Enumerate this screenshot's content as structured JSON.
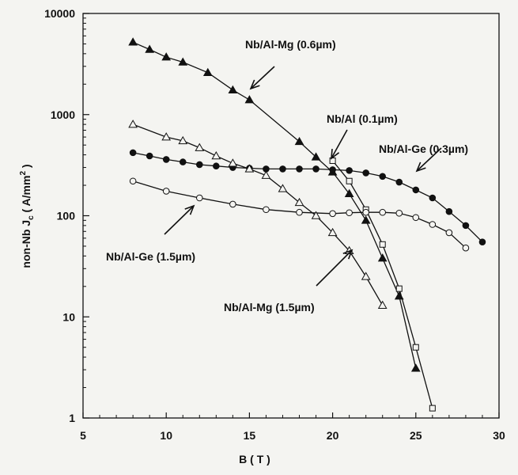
{
  "chart_data": {
    "type": "scatter",
    "title": "",
    "xlabel": "B ( T )",
    "ylabel_main": "non-Nb J",
    "ylabel_sub": "c",
    "ylabel_units": " ( A/mm",
    "ylabel_sup": "2",
    "ylabel_close": " )",
    "x_scale": "linear",
    "y_scale": "log",
    "xlim": [
      5,
      30
    ],
    "ylim": [
      1,
      10000
    ],
    "x_ticks": [
      "5",
      "10",
      "15",
      "20",
      "25",
      "30"
    ],
    "y_ticks": [
      "1",
      "10",
      "100",
      "1000",
      "10000"
    ],
    "grid": false,
    "legend": "none",
    "series": [
      {
        "name": "Nb/Al-Mg (0.6µm)",
        "marker": "filled-triangle",
        "x": [
          8,
          9,
          10,
          11,
          12.5,
          14,
          15,
          18,
          19,
          20,
          21,
          22,
          23,
          24,
          25
        ],
        "y": [
          5200,
          4400,
          3700,
          3300,
          2600,
          1750,
          1400,
          540,
          380,
          270,
          165,
          90,
          38,
          16,
          3.1
        ]
      },
      {
        "name": "Nb/Al (0.1µm)",
        "marker": "open-square",
        "x": [
          20,
          21,
          22,
          23,
          24,
          25,
          26
        ],
        "y": [
          350,
          220,
          115,
          52,
          19,
          5,
          1.25
        ]
      },
      {
        "name": "Nb/Al-Ge (0.3µm)",
        "marker": "filled-circle",
        "x": [
          8,
          9,
          10,
          11,
          12,
          13,
          14,
          15,
          16,
          17,
          18,
          19,
          20,
          21,
          22,
          23,
          24,
          25,
          26,
          27,
          28,
          29
        ],
        "y": [
          420,
          390,
          360,
          340,
          320,
          310,
          300,
          295,
          290,
          290,
          290,
          290,
          285,
          280,
          265,
          245,
          215,
          180,
          150,
          110,
          80,
          55
        ]
      },
      {
        "name": "Nb/Al-Mg (1.5µm)",
        "marker": "open-triangle",
        "x": [
          8,
          10,
          11,
          12,
          13,
          14,
          15,
          16,
          17,
          18,
          19,
          20,
          21,
          22,
          23
        ],
        "y": [
          800,
          600,
          550,
          470,
          390,
          330,
          290,
          250,
          185,
          135,
          100,
          68,
          45,
          25,
          13
        ]
      },
      {
        "name": "Nb/Al-Ge (1.5µm)",
        "marker": "open-circle",
        "x": [
          8,
          10,
          12,
          14,
          16,
          18,
          20,
          21,
          22,
          23,
          24,
          25,
          26,
          27,
          28
        ],
        "y": [
          220,
          175,
          150,
          130,
          115,
          108,
          105,
          107,
          108,
          108,
          106,
          96,
          82,
          68,
          48
        ]
      }
    ],
    "annotations": [
      {
        "text": "Nb/Al-Mg (0.6µm)"
      },
      {
        "text": "Nb/Al (0.1µm)"
      },
      {
        "text": "Nb/Al-Ge (0.3µm)"
      },
      {
        "text": "Nb/Al-Ge (1.5µm)"
      },
      {
        "text": "Nb/Al-Mg (1.5µm)"
      }
    ]
  }
}
